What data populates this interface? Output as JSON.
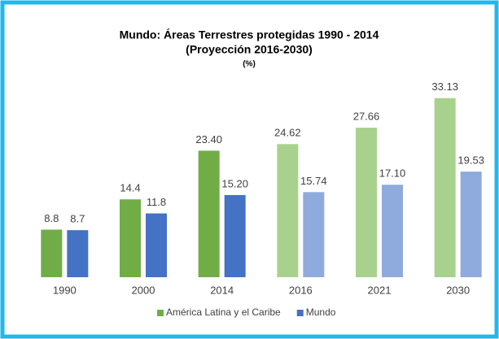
{
  "chart_data": {
    "type": "bar",
    "title": "Mundo: Áreas Terrestres protegidas 1990 - 2014",
    "subtitle": "(Proyección 2016-2030)",
    "unit": "(%)",
    "categories": [
      "1990",
      "2000",
      "2014",
      "2016",
      "2021",
      "2030"
    ],
    "series": [
      {
        "name": "América Latina y el Caribe",
        "color": "#70ad47",
        "colors": [
          "#70ad47",
          "#70ad47",
          "#70ad47",
          "#a9d18e",
          "#a9d18e",
          "#a9d18e"
        ],
        "values": [
          8.8,
          14.4,
          23.4,
          24.62,
          27.66,
          33.13
        ],
        "value_labels": [
          "8.8",
          "14.4",
          "23.40",
          "24.62",
          "27.66",
          "33.13"
        ]
      },
      {
        "name": "Mundo",
        "color": "#4472c4",
        "colors": [
          "#4472c4",
          "#4472c4",
          "#4472c4",
          "#8faadc",
          "#8faadc",
          "#8faadc"
        ],
        "values": [
          8.7,
          11.8,
          15.2,
          15.74,
          17.1,
          19.53
        ],
        "value_labels": [
          "8.7",
          "11.8",
          "15.20",
          "15.74",
          "17.10",
          "19.53"
        ]
      }
    ],
    "legend": "bottom"
  }
}
